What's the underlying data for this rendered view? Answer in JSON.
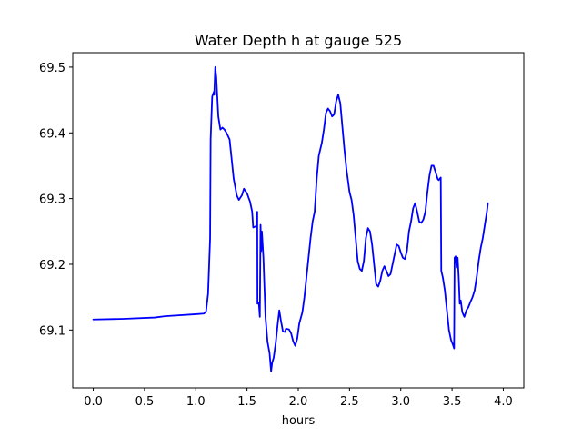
{
  "chart_data": {
    "type": "line",
    "title": "Water Depth h at gauge 525",
    "xlabel": "hours",
    "ylabel": "",
    "xlim": [
      -0.2,
      4.2
    ],
    "ylim": [
      69.012,
      69.522
    ],
    "x_ticks": [
      0.0,
      0.5,
      1.0,
      1.5,
      2.0,
      2.5,
      3.0,
      3.5,
      4.0
    ],
    "x_tick_labels": [
      "0.0",
      "0.5",
      "1.0",
      "1.5",
      "2.0",
      "2.5",
      "3.0",
      "3.5",
      "4.0"
    ],
    "y_ticks": [
      69.1,
      69.2,
      69.3,
      69.4,
      69.5
    ],
    "y_tick_labels": [
      "69.1",
      "69.2",
      "69.3",
      "69.4",
      "69.5"
    ],
    "grid": false,
    "series": [
      {
        "color": "#0000ff",
        "points": [
          [
            0.0,
            69.116
          ],
          [
            0.3,
            69.117
          ],
          [
            0.6,
            69.119
          ],
          [
            0.7,
            69.121
          ],
          [
            1.0,
            69.124
          ],
          [
            1.08,
            69.125
          ],
          [
            1.1,
            69.128
          ],
          [
            1.12,
            69.155
          ],
          [
            1.14,
            69.24
          ],
          [
            1.145,
            69.39
          ],
          [
            1.16,
            69.455
          ],
          [
            1.175,
            69.462
          ],
          [
            1.18,
            69.458
          ],
          [
            1.19,
            69.5
          ],
          [
            1.2,
            69.485
          ],
          [
            1.21,
            69.455
          ],
          [
            1.22,
            69.425
          ],
          [
            1.24,
            69.405
          ],
          [
            1.26,
            69.408
          ],
          [
            1.28,
            69.405
          ],
          [
            1.3,
            69.4
          ],
          [
            1.33,
            69.39
          ],
          [
            1.35,
            69.36
          ],
          [
            1.37,
            69.33
          ],
          [
            1.4,
            69.305
          ],
          [
            1.42,
            69.298
          ],
          [
            1.45,
            69.305
          ],
          [
            1.47,
            69.315
          ],
          [
            1.5,
            69.308
          ],
          [
            1.53,
            69.295
          ],
          [
            1.55,
            69.28
          ],
          [
            1.56,
            69.256
          ],
          [
            1.59,
            69.258
          ],
          [
            1.6,
            69.28
          ],
          [
            1.602,
            69.14
          ],
          [
            1.615,
            69.142
          ],
          [
            1.625,
            69.12
          ],
          [
            1.632,
            69.26
          ],
          [
            1.638,
            69.22
          ],
          [
            1.645,
            69.25
          ],
          [
            1.66,
            69.21
          ],
          [
            1.68,
            69.12
          ],
          [
            1.7,
            69.082
          ],
          [
            1.72,
            69.065
          ],
          [
            1.735,
            69.037
          ],
          [
            1.745,
            69.05
          ],
          [
            1.76,
            69.058
          ],
          [
            1.78,
            69.08
          ],
          [
            1.8,
            69.11
          ],
          [
            1.815,
            69.13
          ],
          [
            1.83,
            69.115
          ],
          [
            1.85,
            69.098
          ],
          [
            1.87,
            69.097
          ],
          [
            1.88,
            69.102
          ],
          [
            1.91,
            69.101
          ],
          [
            1.93,
            69.095
          ],
          [
            1.95,
            69.083
          ],
          [
            1.97,
            69.076
          ],
          [
            1.99,
            69.087
          ],
          [
            2.01,
            69.11
          ],
          [
            2.04,
            69.127
          ],
          [
            2.06,
            69.15
          ],
          [
            2.08,
            69.18
          ],
          [
            2.1,
            69.21
          ],
          [
            2.12,
            69.24
          ],
          [
            2.14,
            69.265
          ],
          [
            2.16,
            69.28
          ],
          [
            2.18,
            69.33
          ],
          [
            2.2,
            69.365
          ],
          [
            2.23,
            69.385
          ],
          [
            2.25,
            69.405
          ],
          [
            2.27,
            69.43
          ],
          [
            2.29,
            69.437
          ],
          [
            2.31,
            69.433
          ],
          [
            2.33,
            69.425
          ],
          [
            2.35,
            69.428
          ],
          [
            2.37,
            69.448
          ],
          [
            2.39,
            69.458
          ],
          [
            2.41,
            69.445
          ],
          [
            2.43,
            69.41
          ],
          [
            2.45,
            69.375
          ],
          [
            2.47,
            69.345
          ],
          [
            2.5,
            69.31
          ],
          [
            2.52,
            69.298
          ],
          [
            2.54,
            69.275
          ],
          [
            2.56,
            69.24
          ],
          [
            2.58,
            69.205
          ],
          [
            2.6,
            69.193
          ],
          [
            2.62,
            69.19
          ],
          [
            2.64,
            69.205
          ],
          [
            2.66,
            69.24
          ],
          [
            2.68,
            69.255
          ],
          [
            2.7,
            69.25
          ],
          [
            2.72,
            69.23
          ],
          [
            2.74,
            69.2
          ],
          [
            2.76,
            69.17
          ],
          [
            2.78,
            69.166
          ],
          [
            2.8,
            69.175
          ],
          [
            2.82,
            69.19
          ],
          [
            2.84,
            69.197
          ],
          [
            2.86,
            69.19
          ],
          [
            2.88,
            69.182
          ],
          [
            2.9,
            69.185
          ],
          [
            2.92,
            69.2
          ],
          [
            2.94,
            69.215
          ],
          [
            2.96,
            69.23
          ],
          [
            2.98,
            69.228
          ],
          [
            3.0,
            69.218
          ],
          [
            3.02,
            69.21
          ],
          [
            3.04,
            69.208
          ],
          [
            3.06,
            69.22
          ],
          [
            3.08,
            69.25
          ],
          [
            3.1,
            69.265
          ],
          [
            3.12,
            69.285
          ],
          [
            3.14,
            69.293
          ],
          [
            3.16,
            69.28
          ],
          [
            3.18,
            69.265
          ],
          [
            3.2,
            69.263
          ],
          [
            3.22,
            69.268
          ],
          [
            3.24,
            69.28
          ],
          [
            3.26,
            69.31
          ],
          [
            3.28,
            69.335
          ],
          [
            3.3,
            69.35
          ],
          [
            3.32,
            69.35
          ],
          [
            3.34,
            69.34
          ],
          [
            3.36,
            69.33
          ],
          [
            3.37,
            69.328
          ],
          [
            3.39,
            69.332
          ],
          [
            3.395,
            69.19
          ],
          [
            3.41,
            69.18
          ],
          [
            3.43,
            69.16
          ],
          [
            3.45,
            69.13
          ],
          [
            3.47,
            69.1
          ],
          [
            3.49,
            69.085
          ],
          [
            3.51,
            69.077
          ],
          [
            3.52,
            69.072
          ],
          [
            3.525,
            69.21
          ],
          [
            3.535,
            69.212
          ],
          [
            3.545,
            69.195
          ],
          [
            3.555,
            69.21
          ],
          [
            3.565,
            69.18
          ],
          [
            3.575,
            69.14
          ],
          [
            3.585,
            69.145
          ],
          [
            3.595,
            69.133
          ],
          [
            3.6,
            69.127
          ],
          [
            3.62,
            69.12
          ],
          [
            3.64,
            69.13
          ],
          [
            3.66,
            69.135
          ],
          [
            3.68,
            69.143
          ],
          [
            3.7,
            69.15
          ],
          [
            3.72,
            69.16
          ],
          [
            3.74,
            69.18
          ],
          [
            3.76,
            69.205
          ],
          [
            3.78,
            69.225
          ],
          [
            3.8,
            69.24
          ],
          [
            3.82,
            69.26
          ],
          [
            3.84,
            69.28
          ],
          [
            3.85,
            69.293
          ]
        ]
      }
    ]
  }
}
